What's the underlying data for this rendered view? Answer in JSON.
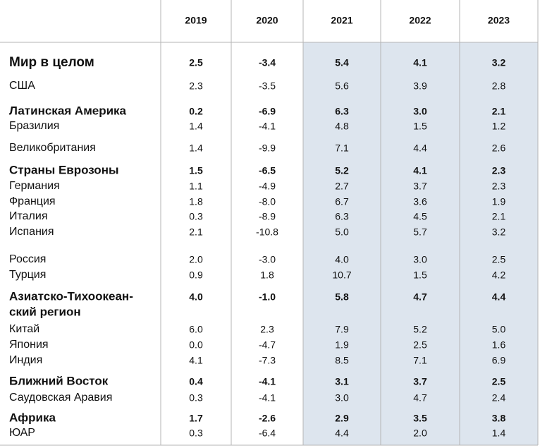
{
  "table": {
    "columns": [
      "2019",
      "2020",
      "2021",
      "2022",
      "2023"
    ],
    "shaded_columns": [
      2,
      3,
      4
    ],
    "shade_color": "#dde5ee",
    "rows": [
      {
        "label": [
          "Мир в целом"
        ],
        "bold": true,
        "big": true,
        "values": [
          "2.5",
          "-3.4",
          "5.4",
          "4.1",
          "3.2"
        ]
      },
      {
        "label": [
          "США"
        ],
        "values": [
          "2.3",
          "-3.5",
          "5.6",
          "3.9",
          "2.8"
        ]
      },
      {
        "label": [
          "Латинская Америка"
        ],
        "bold": true,
        "values": [
          "0.2",
          "-6.9",
          "6.3",
          "3.0",
          "2.1"
        ]
      },
      {
        "label": [
          "Бразилия"
        ],
        "values": [
          "1.4",
          "-4.1",
          "4.8",
          "1.5",
          "1.2"
        ]
      },
      {
        "label": [
          "Великобритания"
        ],
        "values": [
          "1.4",
          "-9.9",
          "7.1",
          "4.4",
          "2.6"
        ]
      },
      {
        "label": [
          "Страны Еврозоны"
        ],
        "bold": true,
        "values": [
          "1.5",
          "-6.5",
          "5.2",
          "4.1",
          "2.3"
        ]
      },
      {
        "label": [
          "Германия"
        ],
        "values": [
          "1.1",
          "-4.9",
          "2.7",
          "3.7",
          "2.3"
        ]
      },
      {
        "label": [
          "Франция"
        ],
        "values": [
          "1.8",
          "-8.0",
          "6.7",
          "3.6",
          "1.9"
        ]
      },
      {
        "label": [
          "Италия"
        ],
        "values": [
          "0.3",
          "-8.9",
          "6.3",
          "4.5",
          "2.1"
        ]
      },
      {
        "label": [
          "Испания"
        ],
        "values": [
          "2.1",
          "-10.8",
          "5.0",
          "5.7",
          "3.2"
        ]
      },
      {
        "label": [
          "Россия"
        ],
        "values": [
          "2.0",
          "-3.0",
          "4.0",
          "3.0",
          "2.5"
        ]
      },
      {
        "label": [
          "Турция"
        ],
        "values": [
          "0.9",
          "1.8",
          "10.7",
          "1.5",
          "4.2"
        ]
      },
      {
        "label": [
          "Азиатско-Тихоокеан-",
          "ский регион"
        ],
        "bold": true,
        "values": [
          "4.0",
          "-1.0",
          "5.8",
          "4.7",
          "4.4"
        ]
      },
      {
        "label": [
          "Китай"
        ],
        "values": [
          "6.0",
          "2.3",
          "7.9",
          "5.2",
          "5.0"
        ]
      },
      {
        "label": [
          "Япония"
        ],
        "values": [
          "0.0",
          "-4.7",
          "1.9",
          "2.5",
          "1.6"
        ]
      },
      {
        "label": [
          "Индия"
        ],
        "values": [
          "4.1",
          "-7.3",
          "8.5",
          "7.1",
          "6.9"
        ]
      },
      {
        "label": [
          "Ближний Восток"
        ],
        "bold": true,
        "values": [
          "0.4",
          "-4.1",
          "3.1",
          "3.7",
          "2.5"
        ]
      },
      {
        "label": [
          "Саудовская Аравия"
        ],
        "values": [
          "0.3",
          "-4.1",
          "3.0",
          "4.7",
          "2.4"
        ]
      },
      {
        "label": [
          "Африка"
        ],
        "bold": true,
        "values": [
          "1.7",
          "-2.6",
          "2.9",
          "3.5",
          "3.8"
        ]
      },
      {
        "label": [
          "ЮАР"
        ],
        "values": [
          "0.3",
          "-6.4",
          "4.4",
          "2.0",
          "1.4"
        ]
      }
    ]
  }
}
